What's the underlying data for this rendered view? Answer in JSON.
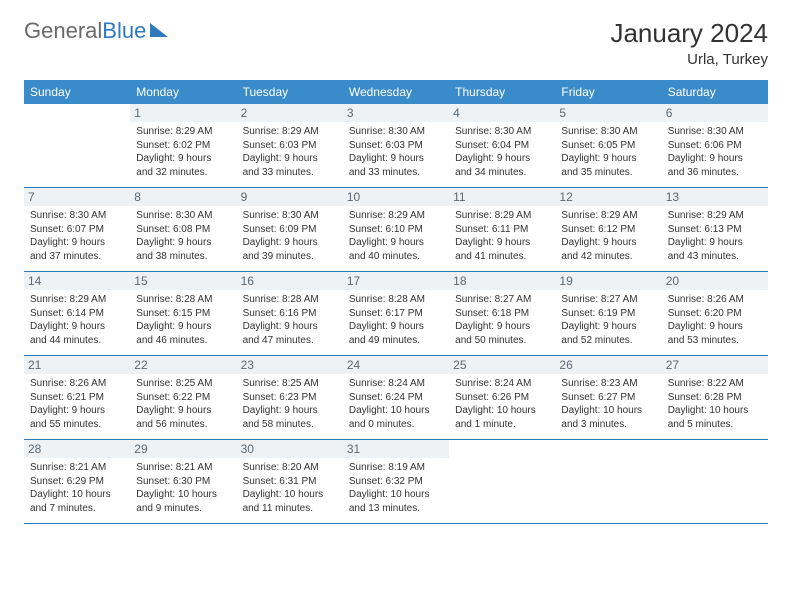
{
  "brand": {
    "part1": "General",
    "part2": "Blue"
  },
  "title": "January 2024",
  "location": "Urla, Turkey",
  "colors": {
    "header_bg": "#3a8bc9",
    "accent": "#2f7abf",
    "daynum_bg": "#eef2f5",
    "daynum_text": "#5a6a78",
    "text": "#333333"
  },
  "dayNames": [
    "Sunday",
    "Monday",
    "Tuesday",
    "Wednesday",
    "Thursday",
    "Friday",
    "Saturday"
  ],
  "weeks": [
    [
      {
        "n": "",
        "sr": "",
        "ss": "",
        "dl": ""
      },
      {
        "n": "1",
        "sr": "Sunrise: 8:29 AM",
        "ss": "Sunset: 6:02 PM",
        "dl": "Daylight: 9 hours and 32 minutes."
      },
      {
        "n": "2",
        "sr": "Sunrise: 8:29 AM",
        "ss": "Sunset: 6:03 PM",
        "dl": "Daylight: 9 hours and 33 minutes."
      },
      {
        "n": "3",
        "sr": "Sunrise: 8:30 AM",
        "ss": "Sunset: 6:03 PM",
        "dl": "Daylight: 9 hours and 33 minutes."
      },
      {
        "n": "4",
        "sr": "Sunrise: 8:30 AM",
        "ss": "Sunset: 6:04 PM",
        "dl": "Daylight: 9 hours and 34 minutes."
      },
      {
        "n": "5",
        "sr": "Sunrise: 8:30 AM",
        "ss": "Sunset: 6:05 PM",
        "dl": "Daylight: 9 hours and 35 minutes."
      },
      {
        "n": "6",
        "sr": "Sunrise: 8:30 AM",
        "ss": "Sunset: 6:06 PM",
        "dl": "Daylight: 9 hours and 36 minutes."
      }
    ],
    [
      {
        "n": "7",
        "sr": "Sunrise: 8:30 AM",
        "ss": "Sunset: 6:07 PM",
        "dl": "Daylight: 9 hours and 37 minutes."
      },
      {
        "n": "8",
        "sr": "Sunrise: 8:30 AM",
        "ss": "Sunset: 6:08 PM",
        "dl": "Daylight: 9 hours and 38 minutes."
      },
      {
        "n": "9",
        "sr": "Sunrise: 8:30 AM",
        "ss": "Sunset: 6:09 PM",
        "dl": "Daylight: 9 hours and 39 minutes."
      },
      {
        "n": "10",
        "sr": "Sunrise: 8:29 AM",
        "ss": "Sunset: 6:10 PM",
        "dl": "Daylight: 9 hours and 40 minutes."
      },
      {
        "n": "11",
        "sr": "Sunrise: 8:29 AM",
        "ss": "Sunset: 6:11 PM",
        "dl": "Daylight: 9 hours and 41 minutes."
      },
      {
        "n": "12",
        "sr": "Sunrise: 8:29 AM",
        "ss": "Sunset: 6:12 PM",
        "dl": "Daylight: 9 hours and 42 minutes."
      },
      {
        "n": "13",
        "sr": "Sunrise: 8:29 AM",
        "ss": "Sunset: 6:13 PM",
        "dl": "Daylight: 9 hours and 43 minutes."
      }
    ],
    [
      {
        "n": "14",
        "sr": "Sunrise: 8:29 AM",
        "ss": "Sunset: 6:14 PM",
        "dl": "Daylight: 9 hours and 44 minutes."
      },
      {
        "n": "15",
        "sr": "Sunrise: 8:28 AM",
        "ss": "Sunset: 6:15 PM",
        "dl": "Daylight: 9 hours and 46 minutes."
      },
      {
        "n": "16",
        "sr": "Sunrise: 8:28 AM",
        "ss": "Sunset: 6:16 PM",
        "dl": "Daylight: 9 hours and 47 minutes."
      },
      {
        "n": "17",
        "sr": "Sunrise: 8:28 AM",
        "ss": "Sunset: 6:17 PM",
        "dl": "Daylight: 9 hours and 49 minutes."
      },
      {
        "n": "18",
        "sr": "Sunrise: 8:27 AM",
        "ss": "Sunset: 6:18 PM",
        "dl": "Daylight: 9 hours and 50 minutes."
      },
      {
        "n": "19",
        "sr": "Sunrise: 8:27 AM",
        "ss": "Sunset: 6:19 PM",
        "dl": "Daylight: 9 hours and 52 minutes."
      },
      {
        "n": "20",
        "sr": "Sunrise: 8:26 AM",
        "ss": "Sunset: 6:20 PM",
        "dl": "Daylight: 9 hours and 53 minutes."
      }
    ],
    [
      {
        "n": "21",
        "sr": "Sunrise: 8:26 AM",
        "ss": "Sunset: 6:21 PM",
        "dl": "Daylight: 9 hours and 55 minutes."
      },
      {
        "n": "22",
        "sr": "Sunrise: 8:25 AM",
        "ss": "Sunset: 6:22 PM",
        "dl": "Daylight: 9 hours and 56 minutes."
      },
      {
        "n": "23",
        "sr": "Sunrise: 8:25 AM",
        "ss": "Sunset: 6:23 PM",
        "dl": "Daylight: 9 hours and 58 minutes."
      },
      {
        "n": "24",
        "sr": "Sunrise: 8:24 AM",
        "ss": "Sunset: 6:24 PM",
        "dl": "Daylight: 10 hours and 0 minutes."
      },
      {
        "n": "25",
        "sr": "Sunrise: 8:24 AM",
        "ss": "Sunset: 6:26 PM",
        "dl": "Daylight: 10 hours and 1 minute."
      },
      {
        "n": "26",
        "sr": "Sunrise: 8:23 AM",
        "ss": "Sunset: 6:27 PM",
        "dl": "Daylight: 10 hours and 3 minutes."
      },
      {
        "n": "27",
        "sr": "Sunrise: 8:22 AM",
        "ss": "Sunset: 6:28 PM",
        "dl": "Daylight: 10 hours and 5 minutes."
      }
    ],
    [
      {
        "n": "28",
        "sr": "Sunrise: 8:21 AM",
        "ss": "Sunset: 6:29 PM",
        "dl": "Daylight: 10 hours and 7 minutes."
      },
      {
        "n": "29",
        "sr": "Sunrise: 8:21 AM",
        "ss": "Sunset: 6:30 PM",
        "dl": "Daylight: 10 hours and 9 minutes."
      },
      {
        "n": "30",
        "sr": "Sunrise: 8:20 AM",
        "ss": "Sunset: 6:31 PM",
        "dl": "Daylight: 10 hours and 11 minutes."
      },
      {
        "n": "31",
        "sr": "Sunrise: 8:19 AM",
        "ss": "Sunset: 6:32 PM",
        "dl": "Daylight: 10 hours and 13 minutes."
      },
      {
        "n": "",
        "sr": "",
        "ss": "",
        "dl": ""
      },
      {
        "n": "",
        "sr": "",
        "ss": "",
        "dl": ""
      },
      {
        "n": "",
        "sr": "",
        "ss": "",
        "dl": ""
      }
    ]
  ]
}
